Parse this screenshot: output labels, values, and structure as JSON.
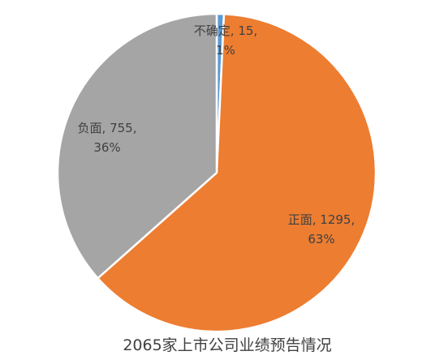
{
  "chart_data": {
    "type": "pie",
    "title": "2065家上市公司业绩预告情况",
    "slices": [
      {
        "name": "不确定",
        "value": 15,
        "percent": "1%",
        "color": "#5B9BD5",
        "label_line1": "不确定, 15,",
        "label_line2": "1%"
      },
      {
        "name": "正面",
        "value": 1295,
        "percent": "63%",
        "color": "#ED7D31",
        "label_line1": "正面, 1295,",
        "label_line2": "63%"
      },
      {
        "name": "负面",
        "value": 755,
        "percent": "36%",
        "color": "#A5A5A5",
        "label_line1": "负面, 755,",
        "label_line2": "36%"
      }
    ],
    "start_angle_deg": 0,
    "direction": "clockwise",
    "legend": "none"
  }
}
